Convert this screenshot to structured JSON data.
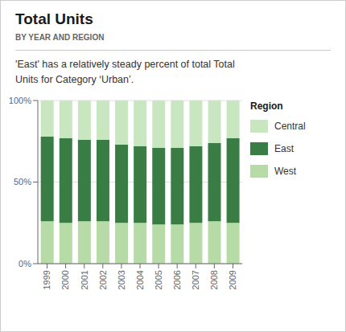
{
  "chart_data": {
    "type": "bar",
    "title": "Total Units",
    "subtitle": "BY YEAR AND REGION",
    "annotations": [
      "'East' has a relatively steady percent of total Total",
      "Units for Category ‘Urban’."
    ],
    "legend_title": "Region",
    "categories": [
      "1999",
      "2000",
      "2001",
      "2002",
      "2003",
      "2004",
      "2005",
      "2006",
      "2007",
      "2008",
      "2009"
    ],
    "series": [
      {
        "name": "West",
        "color": "#b7dba7",
        "values": [
          0.26,
          0.25,
          0.26,
          0.26,
          0.25,
          0.25,
          0.24,
          0.24,
          0.25,
          0.26,
          0.25
        ]
      },
      {
        "name": "East",
        "color": "#3a7d44",
        "values": [
          0.52,
          0.52,
          0.5,
          0.5,
          0.48,
          0.47,
          0.47,
          0.47,
          0.47,
          0.48,
          0.52
        ]
      },
      {
        "name": "Central",
        "color": "#c8e6c0",
        "values": [
          0.22,
          0.23,
          0.24,
          0.24,
          0.27,
          0.28,
          0.29,
          0.29,
          0.28,
          0.26,
          0.23
        ]
      }
    ],
    "stacked": true,
    "ylim": [
      0,
      1
    ],
    "yticks": [
      {
        "value": 0,
        "label": "0%"
      },
      {
        "value": 0.5,
        "label": "50%"
      },
      {
        "value": 1,
        "label": "100%"
      }
    ],
    "grid": true,
    "legend": "right"
  }
}
